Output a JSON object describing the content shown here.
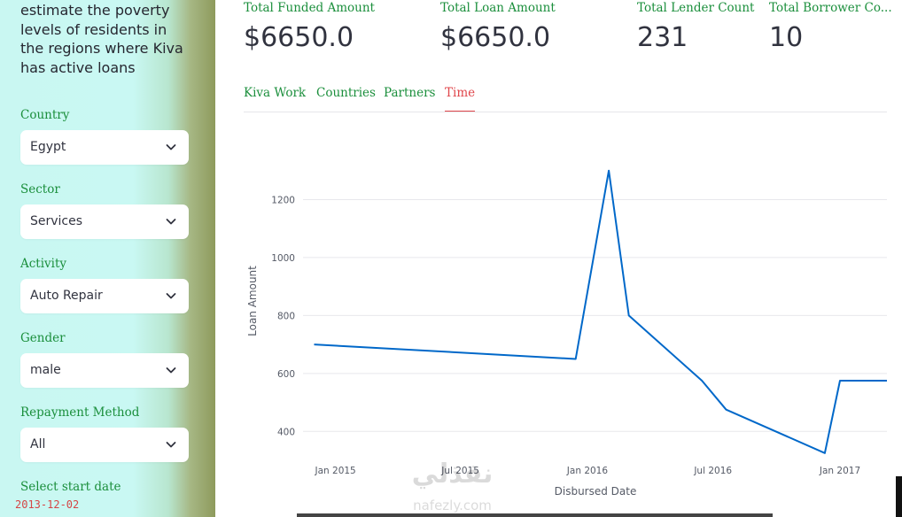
{
  "sidebar": {
    "intro_text": "estimate the poverty levels of residents in the regions where Kiva has active loans",
    "filters": [
      {
        "label": "Country",
        "value": "Egypt"
      },
      {
        "label": "Sector",
        "value": "Services"
      },
      {
        "label": "Activity",
        "value": "Auto Repair"
      },
      {
        "label": "Gender",
        "value": "male"
      },
      {
        "label": "Repayment Method",
        "value": "All"
      }
    ],
    "start_date_label": "Select start date",
    "start_date_value": "2013-12-02"
  },
  "metrics": [
    {
      "label": "Total Funded Amount",
      "value": "$6650.0"
    },
    {
      "label": "Total Loan Amount",
      "value": "$6650.0"
    },
    {
      "label": "Total Lender Count",
      "value": "231"
    },
    {
      "label": "Total Borrower Co...",
      "value": "10"
    }
  ],
  "tabs": [
    {
      "label": "Kiva Work",
      "active": false
    },
    {
      "label": "Countries",
      "active": false
    },
    {
      "label": "Partners",
      "active": false
    },
    {
      "label": "Time",
      "active": true
    }
  ],
  "chart_data": {
    "type": "line",
    "xlabel": "Disbursed Date",
    "ylabel": "Loan Amount",
    "x_tick_labels": [
      "Jan 2015",
      "Jul 2015",
      "Jan 2016",
      "Jul 2016",
      "Jan 2017"
    ],
    "y_ticks": [
      400,
      600,
      800,
      1000,
      1200
    ],
    "ylim": [
      300,
      1400
    ],
    "grid": true,
    "line_color": "#0068c9",
    "series": [
      {
        "x": [
          "2014-12-01",
          "2015-12-15",
          "2016-02-01",
          "2016-03-01",
          "2016-06-15",
          "2016-07-20",
          "2016-12-10",
          "2017-01-01",
          "2017-03-10"
        ],
        "values": [
          700,
          650,
          1300,
          800,
          575,
          475,
          325,
          575,
          575
        ]
      }
    ]
  },
  "colors": {
    "label_green": "#1b8f3c",
    "active_tab_red": "#e0464b",
    "date_red": "#d64545"
  },
  "watermark": {
    "logo_text": "نفذلي",
    "url_text": "nafezly.com"
  }
}
